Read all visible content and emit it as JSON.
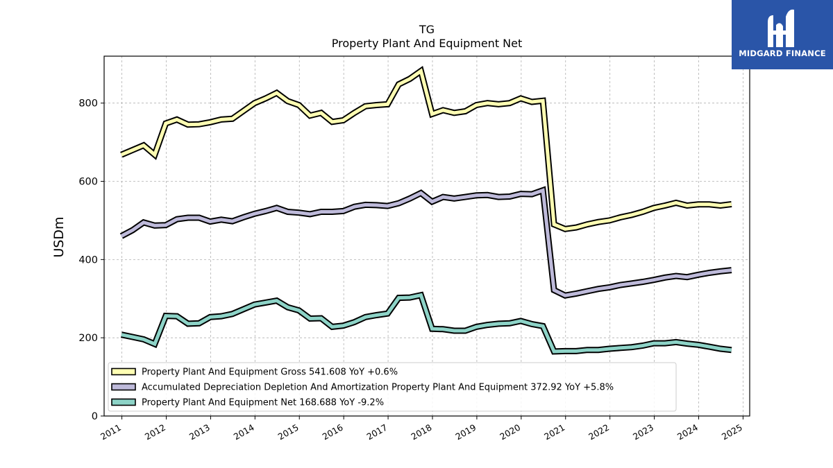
{
  "brand": {
    "name": "MIDGARD FINANCE",
    "bg": "#2a55a8"
  },
  "chart_data": {
    "type": "line",
    "title": "TG",
    "subtitle": "Property Plant And Equipment Net",
    "ylabel": "USDm",
    "xlabel": "",
    "ylim": [
      0,
      920
    ],
    "yticks": [
      0,
      200,
      400,
      600,
      800
    ],
    "xlim": [
      2010.6,
      2025.15
    ],
    "xticks": [
      "2011",
      "2012",
      "2013",
      "2014",
      "2015",
      "2016",
      "2017",
      "2018",
      "2019",
      "2020",
      "2021",
      "2022",
      "2023",
      "2024",
      "2025"
    ],
    "grid": true,
    "legend_position": "lower-left",
    "x": [
      2010.99,
      2011.24,
      2011.49,
      2011.74,
      2011.99,
      2012.24,
      2012.49,
      2012.74,
      2012.99,
      2013.24,
      2013.49,
      2013.74,
      2013.99,
      2014.24,
      2014.49,
      2014.74,
      2014.99,
      2015.24,
      2015.49,
      2015.74,
      2015.99,
      2016.24,
      2016.49,
      2016.74,
      2016.99,
      2017.24,
      2017.49,
      2017.74,
      2017.99,
      2018.24,
      2018.49,
      2018.74,
      2018.99,
      2019.24,
      2019.49,
      2019.74,
      2019.99,
      2020.24,
      2020.49,
      2020.74,
      2020.99,
      2021.24,
      2021.49,
      2021.74,
      2021.99,
      2022.24,
      2022.49,
      2022.74,
      2022.99,
      2023.24,
      2023.49,
      2023.74,
      2023.99,
      2024.24,
      2024.49,
      2024.74
    ],
    "series": [
      {
        "name": "Property Plant And Equipment Gross",
        "legend_label": "Property Plant And Equipment Gross  541.608 YoY +0.6%",
        "color": "#ffffb3",
        "values": [
          668,
          680,
          692,
          668,
          748,
          758,
          745,
          746,
          751,
          758,
          760,
          780,
          800,
          812,
          826,
          805,
          795,
          768,
          775,
          752,
          756,
          775,
          792,
          795,
          797,
          848,
          862,
          882,
          772,
          782,
          775,
          779,
          795,
          800,
          797,
          800,
          812,
          803,
          806,
          490,
          478,
          482,
          490,
          496,
          500,
          508,
          514,
          522,
          532,
          538,
          545,
          538,
          541,
          541,
          538,
          541.608
        ]
      },
      {
        "name": "Accumulated Depreciation Depletion And Amortization Property Plant And Equipment",
        "legend_label": "Accumulated Depreciation Depletion And Amortization Property Plant And Equipment  372.92 YoY +5.8%",
        "color": "#bebada",
        "values": [
          460,
          475,
          495,
          487,
          488,
          503,
          507,
          507,
          497,
          502,
          498,
          508,
          517,
          524,
          532,
          522,
          520,
          516,
          522,
          522,
          524,
          535,
          540,
          539,
          537,
          544,
          556,
          570,
          548,
          560,
          556,
          560,
          564,
          565,
          560,
          561,
          568,
          567,
          577,
          322,
          308,
          313,
          319,
          325,
          329,
          335,
          339,
          343,
          348,
          354,
          358,
          355,
          361,
          366,
          370,
          372.92
        ]
      },
      {
        "name": "Property Plant And Equipment Net",
        "legend_label": "Property Plant And Equipment Net  168.688 YoY -9.2%",
        "color": "#8dd3c7",
        "values": [
          208,
          202,
          196,
          184,
          256,
          255,
          236,
          237,
          253,
          255,
          261,
          273,
          285,
          290,
          295,
          278,
          270,
          249,
          250,
          228,
          231,
          240,
          253,
          258,
          262,
          302,
          303,
          309,
          223,
          222,
          218,
          218,
          228,
          233,
          236,
          237,
          243,
          235,
          230,
          165,
          166,
          166,
          169,
          169,
          172,
          174,
          176,
          180,
          186,
          186,
          189,
          185,
          182,
          177,
          172,
          168.688
        ]
      }
    ]
  }
}
